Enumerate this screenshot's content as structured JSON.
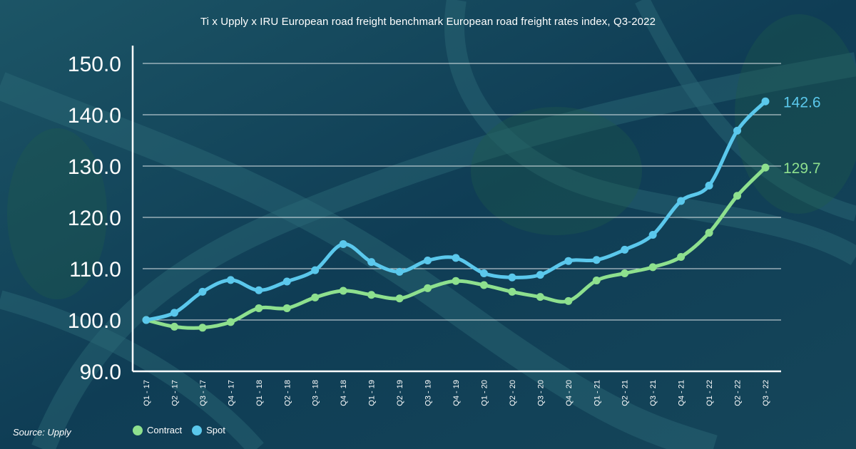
{
  "title": "Ti x Upply x IRU European road freight benchmark European road freight rates index, Q3-2022",
  "source": "Source: Upply",
  "colors": {
    "contract": "#8ee08e",
    "spot": "#5bc8ec",
    "grid": "#ffffff",
    "background": "#0f3d55"
  },
  "chart_data": {
    "type": "line",
    "title": "Ti x Upply x IRU European road freight benchmark European road freight rates index, Q3-2022",
    "xlabel": "",
    "ylabel": "",
    "ylim": [
      90,
      150
    ],
    "yticks": [
      "150.0",
      "140.0",
      "130.0",
      "120.0",
      "110.0",
      "100.0",
      "90.0"
    ],
    "grid": true,
    "legend_position": "bottom-left",
    "categories": [
      "Q1 - 17",
      "Q2 - 17",
      "Q3 - 17",
      "Q4 - 17",
      "Q1 - 18",
      "Q2 - 18",
      "Q3 - 18",
      "Q4 - 18",
      "Q1 - 19",
      "Q2 - 19",
      "Q3 - 19",
      "Q4 - 19",
      "Q1 - 20",
      "Q2 - 20",
      "Q3 - 20",
      "Q4 - 20",
      "Q1 - 21",
      "Q2 - 21",
      "Q3 - 21",
      "Q4 - 21",
      "Q1 - 22",
      "Q2 - 22",
      "Q3 - 22"
    ],
    "series": [
      {
        "name": "Contract",
        "color": "#8ee08e",
        "values": [
          100.0,
          98.7,
          98.5,
          99.6,
          102.3,
          102.3,
          104.4,
          105.7,
          104.9,
          104.2,
          106.2,
          107.6,
          106.8,
          105.5,
          104.5,
          103.7,
          107.7,
          109.1,
          110.3,
          112.3,
          117.0,
          124.2,
          129.7
        ],
        "end_label": "129.7"
      },
      {
        "name": "Spot",
        "color": "#5bc8ec",
        "values": [
          100.0,
          101.4,
          105.5,
          107.8,
          105.8,
          107.5,
          109.7,
          114.8,
          111.3,
          109.4,
          111.6,
          112.1,
          109.1,
          108.3,
          108.8,
          111.5,
          111.7,
          113.7,
          116.6,
          123.2,
          126.2,
          136.9,
          142.6
        ],
        "end_label": "142.6"
      }
    ],
    "legend": [
      "Contract",
      "Spot"
    ]
  }
}
